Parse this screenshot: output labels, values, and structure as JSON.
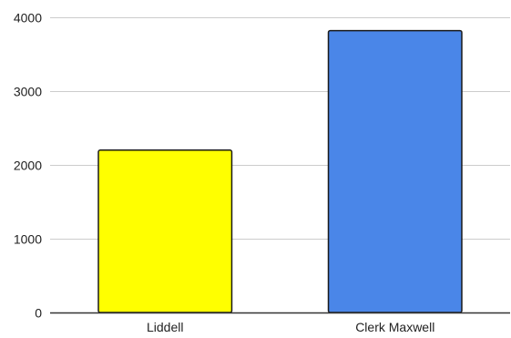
{
  "chart_data": {
    "type": "bar",
    "title": "",
    "xlabel": "",
    "ylabel": "",
    "categories": [
      "Liddell",
      "Clerk Maxwell"
    ],
    "values": [
      2200,
      3820
    ],
    "bar_colors": [
      "#ffff00",
      "#4a86e8"
    ],
    "ylim": [
      0,
      4000
    ],
    "yticks": [
      0,
      1000,
      2000,
      3000,
      4000
    ],
    "ytick_labels": [
      "0",
      "1000",
      "2000",
      "3000",
      "4000"
    ],
    "grid": true,
    "grid_color": "#cccccc",
    "bar_stroke": "#1a1a1a"
  }
}
